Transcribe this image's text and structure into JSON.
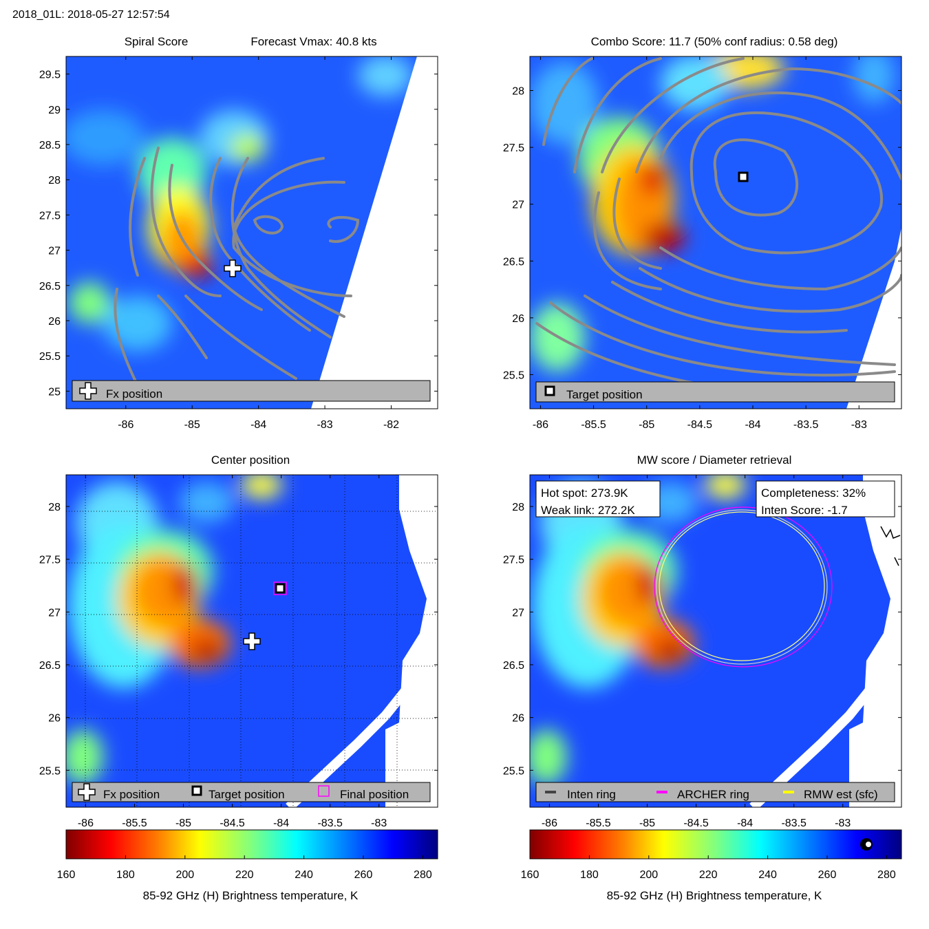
{
  "window_title": "2018_01L: 2018-05-27 12:57:54",
  "colors": {
    "contour": "#8a8a8a",
    "legend_bg": "#b4b4b4",
    "archer_ring": "#ff00ff",
    "inten_ring": "#444444",
    "rmw_ring": "#ffff00",
    "colormap": [
      "#800000",
      "#ff0000",
      "#ff8000",
      "#ffff00",
      "#80ff80",
      "#00ffff",
      "#0080ff",
      "#0000ff",
      "#000080"
    ]
  },
  "colorbar": {
    "label": "85-92 GHz (H) Brightness temperature, K",
    "range": [
      160,
      285
    ],
    "ticks": [
      "160",
      "180",
      "200",
      "220",
      "240",
      "260",
      "280"
    ]
  },
  "panels": {
    "spiral": {
      "title_left": "Spiral Score",
      "title_right": "Forecast Vmax: 40.8 kts",
      "x_ticks": [
        "-86",
        "-85",
        "-84",
        "-83",
        "-82"
      ],
      "y_ticks": [
        "29.5",
        "29",
        "28.5",
        "28",
        "27.5",
        "27",
        "26.5",
        "26",
        "25.5",
        "25"
      ],
      "legend": "Fx position"
    },
    "combo": {
      "title": "Combo Score: 11.7  (50% conf radius: 0.58 deg)",
      "x_ticks": [
        "-86",
        "-85.5",
        "-85",
        "-84.5",
        "-84",
        "-83.5",
        "-83"
      ],
      "y_ticks": [
        "28",
        "27.5",
        "27",
        "26.5",
        "26",
        "25.5"
      ],
      "legend": "Target position"
    },
    "center": {
      "title": "Center position",
      "x_ticks": [
        "-86",
        "-85.5",
        "-85",
        "-84.5",
        "-84",
        "-83.5",
        "-83"
      ],
      "y_ticks": [
        "28",
        "27.5",
        "27",
        "26.5",
        "26",
        "25.5"
      ],
      "legend": [
        "Fx position",
        "Target position",
        "Final position"
      ]
    },
    "mw": {
      "title": "MW score / Diameter retrieval",
      "x_ticks": [
        "-86",
        "-85.5",
        "-85",
        "-84.5",
        "-84",
        "-83.5",
        "-83"
      ],
      "y_ticks": [
        "28",
        "27.5",
        "27",
        "26.5",
        "26",
        "25.5"
      ],
      "hot_spot": "Hot spot: 273.9K",
      "weak_link": "Weak link: 272.2K",
      "completeness": "Completeness: 32%",
      "inten_score": "Inten Score: -1.7",
      "legend": [
        "Inten ring",
        "ARCHER ring",
        "RMW est (sfc)"
      ]
    }
  },
  "chart_data": [
    {
      "type": "heatmap",
      "title": "Spiral Score",
      "subtitle": "Forecast Vmax: 40.8 kts",
      "xlim": [
        -86.9,
        -81.3
      ],
      "ylim": [
        24.75,
        29.75
      ],
      "grid": false,
      "legend_position": "bottom",
      "markers": [
        {
          "label": "Fx position",
          "lon": -84.4,
          "lat": 26.75,
          "symbol": "plus"
        }
      ]
    },
    {
      "type": "heatmap",
      "title": "Combo Score: 11.7  (50% conf radius: 0.58 deg)",
      "xlim": [
        -86.1,
        -82.6
      ],
      "ylim": [
        25.2,
        28.3
      ],
      "grid": false,
      "legend_position": "bottom",
      "markers": [
        {
          "label": "Target position",
          "lon": -84.12,
          "lat": 27.25,
          "symbol": "square"
        }
      ]
    },
    {
      "type": "heatmap",
      "title": "Center position",
      "xlim": [
        -86.2,
        -82.4
      ],
      "ylim": [
        25.15,
        28.3
      ],
      "grid": true,
      "legend_position": "bottom",
      "colorbar_range": [
        160,
        285
      ],
      "markers": [
        {
          "label": "Fx position",
          "lon": -84.4,
          "lat": 26.75,
          "symbol": "plus"
        },
        {
          "label": "Target position",
          "lon": -84.12,
          "lat": 27.25,
          "symbol": "square"
        },
        {
          "label": "Final position",
          "lon": -84.12,
          "lat": 27.25,
          "symbol": "square-magenta"
        }
      ]
    },
    {
      "type": "heatmap",
      "title": "MW score / Diameter retrieval",
      "xlim": [
        -86.2,
        -82.4
      ],
      "ylim": [
        25.15,
        28.3
      ],
      "grid": false,
      "legend_position": "bottom",
      "colorbar_range": [
        160,
        285
      ],
      "rings": [
        {
          "name": "ARCHER ring",
          "center_lon": -84.1,
          "center_lat": 27.28,
          "radius_deg": 0.73
        },
        {
          "name": "Inten ring",
          "center_lon": -84.1,
          "center_lat": 27.28,
          "radius_deg": 0.71
        },
        {
          "name": "RMW est (sfc)",
          "center_lon": -84.1,
          "center_lat": 27.28,
          "radius_deg": 0.69
        }
      ],
      "hot_spot_K": 273.9,
      "weak_link_K": 272.2,
      "completeness_pct": 32,
      "inten_score": -1.7
    }
  ]
}
